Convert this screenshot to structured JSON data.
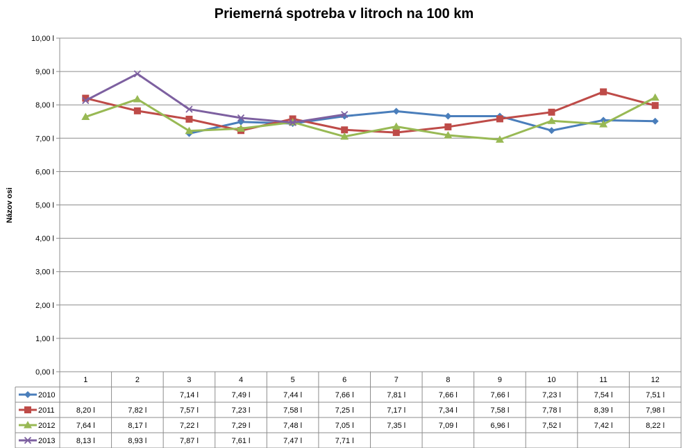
{
  "chart_data": {
    "type": "line",
    "title": "Priemerná spotreba v litroch na 100 km",
    "ylabel": "Názov osi",
    "xlabel": "",
    "ylim": [
      0,
      10
    ],
    "y_ticks": [
      "0,00 l",
      "1,00 l",
      "2,00 l",
      "3,00 l",
      "4,00 l",
      "5,00 l",
      "6,00 l",
      "7,00 l",
      "8,00 l",
      "9,00 l",
      "10,00 l"
    ],
    "categories": [
      "1",
      "2",
      "3",
      "4",
      "5",
      "6",
      "7",
      "8",
      "9",
      "10",
      "11",
      "12"
    ],
    "grid": true,
    "legend": "data-table",
    "series": [
      {
        "name": "2010",
        "color": "#4a7ebb",
        "marker": "diamond",
        "values": [
          null,
          null,
          7.14,
          7.49,
          7.44,
          7.66,
          7.81,
          7.66,
          7.66,
          7.23,
          7.54,
          7.51
        ],
        "labels": [
          "",
          "",
          "7,14 l",
          "7,49 l",
          "7,44 l",
          "7,66 l",
          "7,81 l",
          "7,66 l",
          "7,66 l",
          "7,23 l",
          "7,54 l",
          "7,51 l"
        ]
      },
      {
        "name": "2011",
        "color": "#be4b48",
        "marker": "square",
        "values": [
          8.2,
          7.82,
          7.57,
          7.23,
          7.58,
          7.25,
          7.17,
          7.34,
          7.58,
          7.78,
          8.39,
          7.98
        ],
        "labels": [
          "8,20 l",
          "7,82 l",
          "7,57 l",
          "7,23 l",
          "7,58 l",
          "7,25 l",
          "7,17 l",
          "7,34 l",
          "7,58 l",
          "7,78 l",
          "8,39 l",
          "7,98 l"
        ]
      },
      {
        "name": "2012",
        "color": "#98b954",
        "marker": "triangle",
        "values": [
          7.64,
          8.17,
          7.22,
          7.29,
          7.48,
          7.05,
          7.35,
          7.09,
          6.96,
          7.52,
          7.42,
          8.22
        ],
        "labels": [
          "7,64 l",
          "8,17 l",
          "7,22 l",
          "7,29 l",
          "7,48 l",
          "7,05 l",
          "7,35 l",
          "7,09 l",
          "6,96 l",
          "7,52 l",
          "7,42 l",
          "8,22 l"
        ]
      },
      {
        "name": "2013",
        "color": "#7d60a0",
        "marker": "x",
        "values": [
          8.13,
          8.93,
          7.87,
          7.61,
          7.47,
          7.71,
          null,
          null,
          null,
          null,
          null,
          null
        ],
        "labels": [
          "8,13 l",
          "8,93 l",
          "7,87 l",
          "7,61 l",
          "7,47 l",
          "7,71 l",
          "",
          "",
          "",
          "",
          "",
          ""
        ]
      }
    ]
  }
}
